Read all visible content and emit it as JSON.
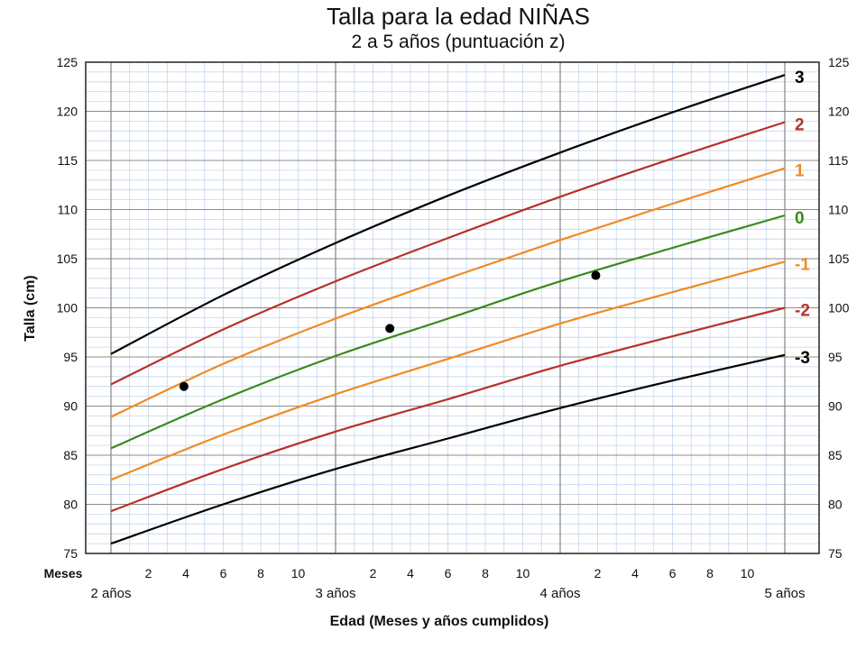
{
  "chart_data": {
    "type": "line",
    "title": "Talla para la edad NIÑAS",
    "subtitle": "2 a 5 años (puntuación z)",
    "xlabel": "Edad (Meses y años cumplidos)",
    "ylabel": "Talla (cm)",
    "x_unit_label": "Meses",
    "x_unit": "months",
    "xlim": [
      24,
      60
    ],
    "ylim": [
      75,
      125
    ],
    "y_ticks": [
      75,
      80,
      85,
      90,
      95,
      100,
      105,
      110,
      115,
      120,
      125
    ],
    "x_minor_ticks": [
      {
        "x": 26,
        "label": "2"
      },
      {
        "x": 28,
        "label": "4"
      },
      {
        "x": 30,
        "label": "6"
      },
      {
        "x": 32,
        "label": "8"
      },
      {
        "x": 34,
        "label": "10"
      },
      {
        "x": 38,
        "label": "2"
      },
      {
        "x": 40,
        "label": "4"
      },
      {
        "x": 42,
        "label": "6"
      },
      {
        "x": 44,
        "label": "8"
      },
      {
        "x": 46,
        "label": "10"
      },
      {
        "x": 50,
        "label": "2"
      },
      {
        "x": 52,
        "label": "4"
      },
      {
        "x": 54,
        "label": "6"
      },
      {
        "x": 56,
        "label": "8"
      },
      {
        "x": 58,
        "label": "10"
      }
    ],
    "x_year_labels": [
      {
        "x": 24,
        "label": "2 años"
      },
      {
        "x": 36,
        "label": "3 años"
      },
      {
        "x": 48,
        "label": "4 años"
      },
      {
        "x": 60,
        "label": "5 años"
      }
    ],
    "grid": true,
    "series": [
      {
        "name": "3",
        "color": "#000000",
        "x": [
          24,
          30,
          36,
          42,
          48,
          54,
          60
        ],
        "y": [
          95.3,
          101.3,
          106.6,
          111.4,
          115.8,
          119.9,
          123.7
        ]
      },
      {
        "name": "2",
        "color": "#b5322a",
        "x": [
          24,
          30,
          36,
          42,
          48,
          54,
          60
        ],
        "y": [
          92.2,
          97.8,
          102.7,
          107.1,
          111.3,
          115.2,
          118.9
        ]
      },
      {
        "name": "1",
        "color": "#f08a24",
        "x": [
          24,
          30,
          36,
          42,
          48,
          54,
          60
        ],
        "y": [
          88.9,
          94.3,
          98.9,
          103.0,
          106.9,
          110.6,
          114.2
        ]
      },
      {
        "name": "0",
        "color": "#3a8a1c",
        "x": [
          24,
          30,
          36,
          42,
          48,
          54,
          60
        ],
        "y": [
          85.7,
          90.7,
          95.1,
          98.9,
          102.7,
          106.1,
          109.4
        ]
      },
      {
        "name": "-1",
        "color": "#f08a24",
        "x": [
          24,
          30,
          36,
          42,
          48,
          54,
          60
        ],
        "y": [
          82.5,
          87.1,
          91.2,
          94.8,
          98.4,
          101.6,
          104.7
        ]
      },
      {
        "name": "-2",
        "color": "#b5322a",
        "x": [
          24,
          30,
          36,
          42,
          48,
          54,
          60
        ],
        "y": [
          79.3,
          83.6,
          87.4,
          90.7,
          94.1,
          97.1,
          100.0
        ]
      },
      {
        "name": "-3",
        "color": "#000000",
        "x": [
          24,
          30,
          36,
          42,
          48,
          54,
          60
        ],
        "y": [
          76.0,
          80.0,
          83.6,
          86.7,
          89.8,
          92.6,
          95.2
        ]
      }
    ],
    "points": [
      {
        "x": 27.9,
        "y": 92.0
      },
      {
        "x": 38.9,
        "y": 97.9
      },
      {
        "x": 49.9,
        "y": 103.3
      }
    ]
  }
}
